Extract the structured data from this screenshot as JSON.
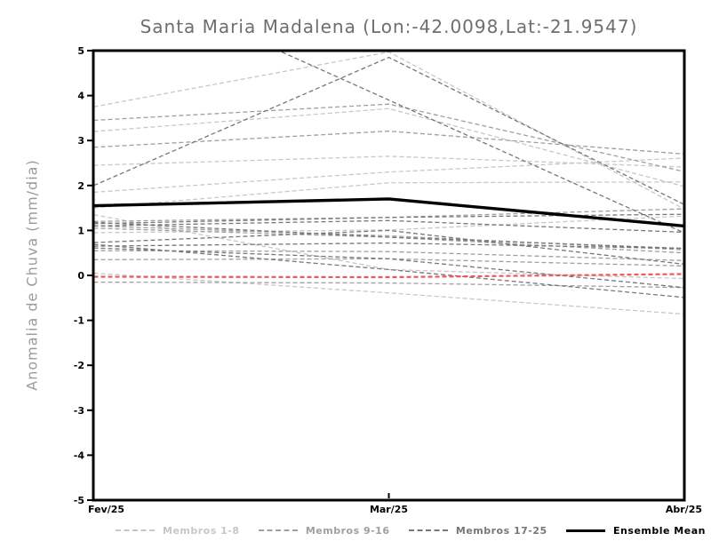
{
  "chart_data": {
    "type": "line",
    "title": "Santa Maria Madalena (Lon:-42.0098,Lat:-21.9547)",
    "ylabel": "Anomalia de Chuva (mm/dia)",
    "xlabel": "",
    "x_categories": [
      "Fev/25",
      "Mar/25",
      "Abr/25"
    ],
    "ylim": [
      -5,
      5
    ],
    "yticks": [
      5,
      4,
      3,
      2,
      1,
      0,
      -1,
      -2,
      -3,
      -4,
      -5
    ],
    "grid": false,
    "legend_position": "bottom",
    "series_groups": [
      {
        "name": "Membros 1-8",
        "color": "#c7c7c7",
        "style": "dashed",
        "members": [
          [
            3.2,
            3.71,
            1.98
          ],
          [
            2.45,
            2.65,
            2.41
          ],
          [
            1.85,
            2.3,
            2.61
          ],
          [
            1.5,
            2.06,
            2.08
          ],
          [
            0.95,
            1.01,
            1.32
          ],
          [
            1.35,
            0.13,
            -0.07
          ],
          [
            0.05,
            -0.39,
            -0.86
          ],
          [
            3.75,
            4.97,
            1.48
          ]
        ]
      },
      {
        "name": "Membros 9-16",
        "color": "#9f9f9f",
        "style": "dashed",
        "members": [
          [
            3.45,
            3.81,
            2.31
          ],
          [
            2.85,
            3.21,
            2.7
          ],
          [
            1.2,
            1.29,
            1.48
          ],
          [
            1.1,
            0.88,
            0.57
          ],
          [
            1.05,
            0.85,
            0.5
          ],
          [
            0.55,
            0.53,
            0.33
          ],
          [
            0.35,
            0.37,
            0.21
          ],
          [
            -0.15,
            -0.17,
            -0.27
          ]
        ]
      },
      {
        "name": "Membros 17-25",
        "color": "#777777",
        "style": "dashed",
        "members": [
          [
            6.85,
            3.9,
            0.95
          ],
          [
            2.0,
            4.85,
            1.58
          ],
          [
            0.73,
            1.0,
            0.25
          ],
          [
            0.65,
            0.72,
            0.6
          ],
          [
            1.15,
            1.29,
            1.36
          ],
          [
            0.61,
            0.37,
            -0.27
          ],
          [
            0.69,
            0.13,
            -0.49
          ],
          [
            1.18,
            0.85,
            0.6
          ],
          [
            1.1,
            1.22,
            0.96
          ]
        ]
      }
    ],
    "zero_anomaly_line": {
      "color": "#e85b5b",
      "style": "dashed",
      "values": [
        -0.03,
        -0.04,
        0.03
      ]
    },
    "ensemble_mean": {
      "name": "Ensemble Mean",
      "color": "#000000",
      "style": "solid",
      "values": [
        1.55,
        1.7,
        1.1
      ]
    },
    "legend": [
      {
        "label": "Membros 1-8",
        "color": "#c7c7c7",
        "style": "dashed"
      },
      {
        "label": "Membros 9-16",
        "color": "#9f9f9f",
        "style": "dashed"
      },
      {
        "label": "Membros 17-25",
        "color": "#777777",
        "style": "dashed"
      },
      {
        "label": "Ensemble Mean",
        "color": "#000000",
        "style": "solid"
      }
    ]
  }
}
